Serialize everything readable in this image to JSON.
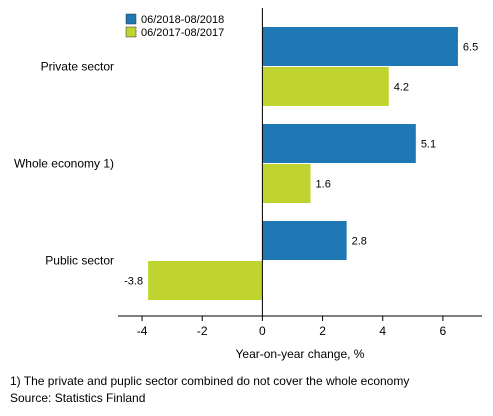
{
  "chart_data": {
    "type": "bar",
    "orientation": "horizontal",
    "categories": [
      "Private sector",
      "Whole economy 1)",
      "Public sector"
    ],
    "series": [
      {
        "name": "06/2018-08/2018",
        "color": "#1f77b4",
        "values": [
          6.5,
          5.1,
          2.8
        ]
      },
      {
        "name": "06/2017-08/2017",
        "color": "#bfd42f",
        "values": [
          4.2,
          1.6,
          -3.8
        ]
      }
    ],
    "xlabel": "Year-on-year change, %",
    "ylabel": "",
    "xlim": [
      -4.8,
      7.3
    ],
    "xticks": [
      -4,
      -2,
      0,
      2,
      4,
      6
    ],
    "legend": "top-left inside plot",
    "grid": false
  },
  "notes": {
    "footnote": "1) The private and puplic sector combined do not cover the whole economy",
    "source": "Source: Statistics Finland"
  }
}
